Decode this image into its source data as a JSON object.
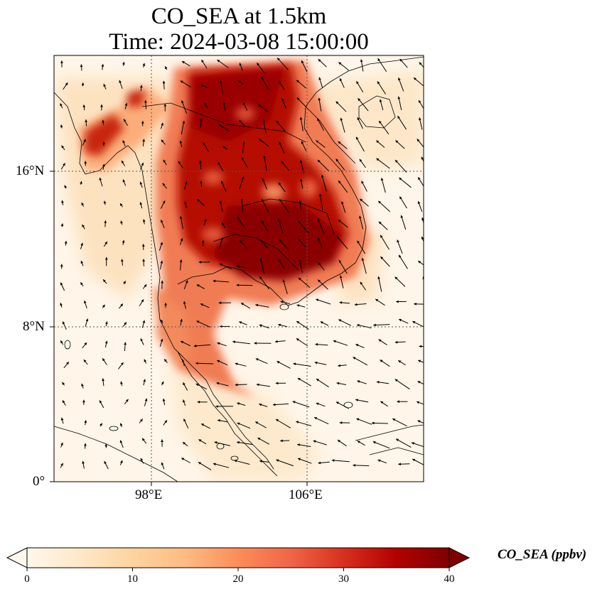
{
  "title": {
    "line1": "CO_SEA at 1.5km",
    "line2": "Time: 2024-03-08 15:00:00"
  },
  "map": {
    "projection": "PlateCarree",
    "extent_lon": [
      93,
      112
    ],
    "extent_lat": [
      0,
      22
    ],
    "x_ticks": [
      {
        "lon": 98,
        "label": "98°E"
      },
      {
        "lon": 106,
        "label": "106°E"
      }
    ],
    "y_ticks": [
      {
        "lat": 0,
        "label": "0°"
      },
      {
        "lat": 8,
        "label": "8°N"
      },
      {
        "lat": 16,
        "label": "16°N"
      }
    ],
    "gridlines": true,
    "field": "CO_SEA",
    "wind_vectors": true
  },
  "colorbar": {
    "label": "CO_SEA (ppbv)",
    "colormap": "OrRd",
    "range": [
      0,
      40
    ],
    "ticks": [
      "0",
      "10",
      "20",
      "30",
      "40"
    ],
    "extend": "both",
    "colors": [
      "#fff7ec",
      "#fee8c8",
      "#fdd49e",
      "#fdbb84",
      "#fc8d59",
      "#ef6548",
      "#d7301f",
      "#b30000",
      "#7f0000"
    ]
  }
}
